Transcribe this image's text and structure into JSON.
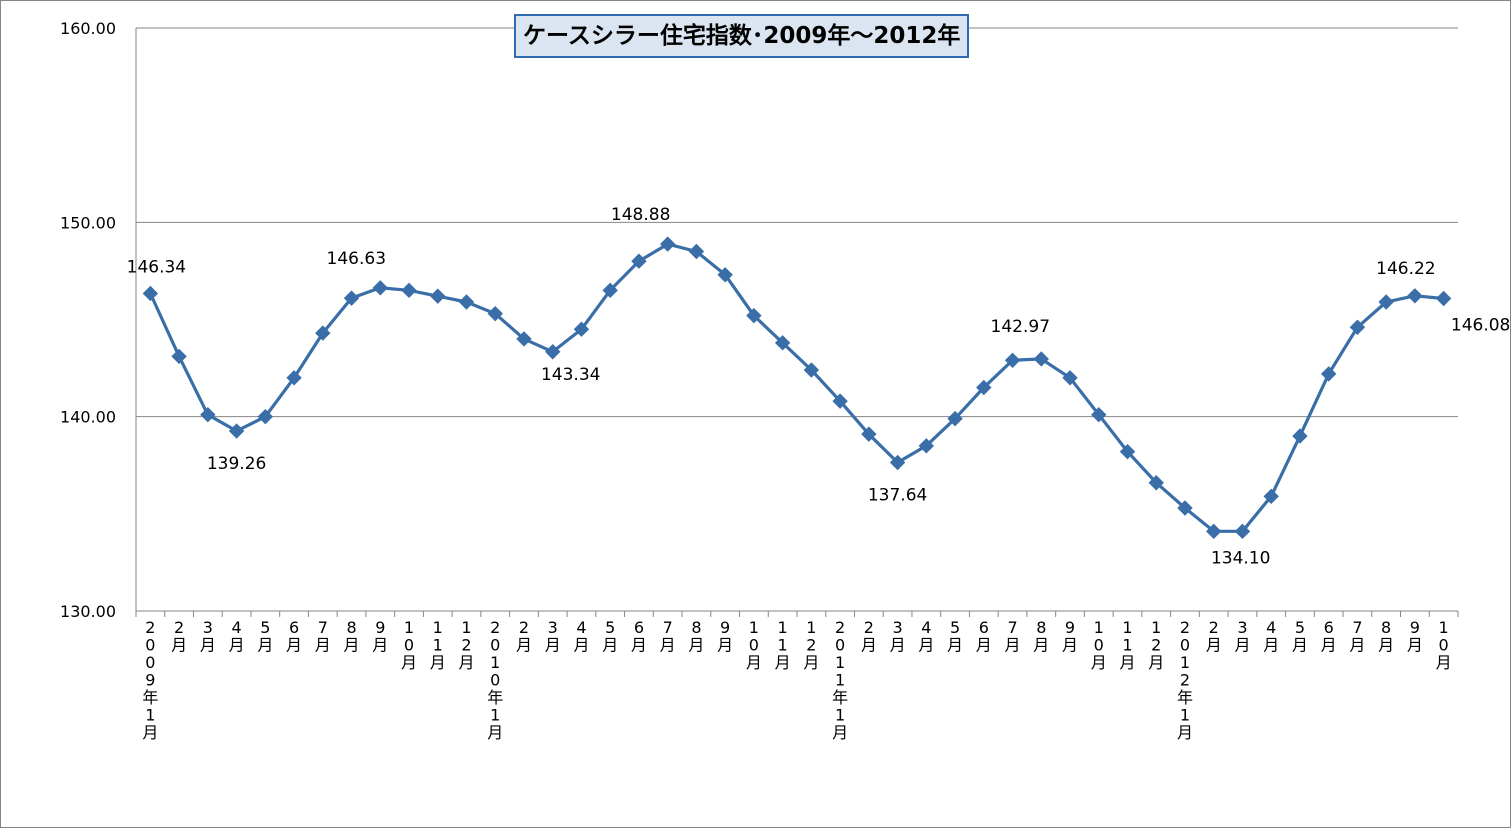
{
  "chart_data": {
    "type": "line",
    "title": "ケースシラー住宅指数･2009年～2012年",
    "xlabel": "",
    "ylabel": "",
    "ylim": [
      130,
      160
    ],
    "yticks": [
      "130.00",
      "140.00",
      "150.00",
      "160.00"
    ],
    "grid": true,
    "line_color": "#3a6ea8",
    "categories": [
      "2009年1月",
      "2月",
      "3月",
      "4月",
      "5月",
      "6月",
      "7月",
      "8月",
      "9月",
      "10月",
      "11月",
      "12月",
      "2010年1月",
      "2月",
      "3月",
      "4月",
      "5月",
      "6月",
      "7月",
      "8月",
      "9月",
      "10月",
      "11月",
      "12月",
      "2011年1月",
      "2月",
      "3月",
      "4月",
      "5月",
      "6月",
      "7月",
      "8月",
      "9月",
      "10月",
      "11月",
      "12月",
      "2012年1月",
      "2月",
      "3月",
      "4月",
      "5月",
      "6月",
      "7月",
      "8月",
      "9月",
      "10月"
    ],
    "values": [
      146.34,
      143.1,
      140.1,
      139.26,
      140.0,
      142.0,
      144.3,
      146.1,
      146.63,
      146.5,
      146.2,
      145.9,
      145.3,
      144.0,
      143.34,
      144.5,
      146.5,
      148.0,
      148.88,
      148.5,
      147.3,
      145.2,
      143.8,
      142.4,
      140.8,
      139.1,
      137.64,
      138.5,
      139.9,
      141.5,
      142.9,
      142.97,
      142.0,
      140.1,
      138.2,
      136.6,
      135.3,
      134.1,
      134.1,
      135.9,
      139.0,
      142.2,
      144.6,
      145.9,
      146.22,
      146.08
    ],
    "data_labels": [
      {
        "index": 0,
        "text": "146.34"
      },
      {
        "index": 3,
        "text": "139.26"
      },
      {
        "index": 8,
        "text": "146.63"
      },
      {
        "index": 14,
        "text": "143.34"
      },
      {
        "index": 18,
        "text": "148.88"
      },
      {
        "index": 26,
        "text": "137.64"
      },
      {
        "index": 31,
        "text": "142.97"
      },
      {
        "index": 37,
        "text": "134.10"
      },
      {
        "index": 44,
        "text": "146.22"
      },
      {
        "index": 45,
        "text": "146.08"
      }
    ]
  }
}
